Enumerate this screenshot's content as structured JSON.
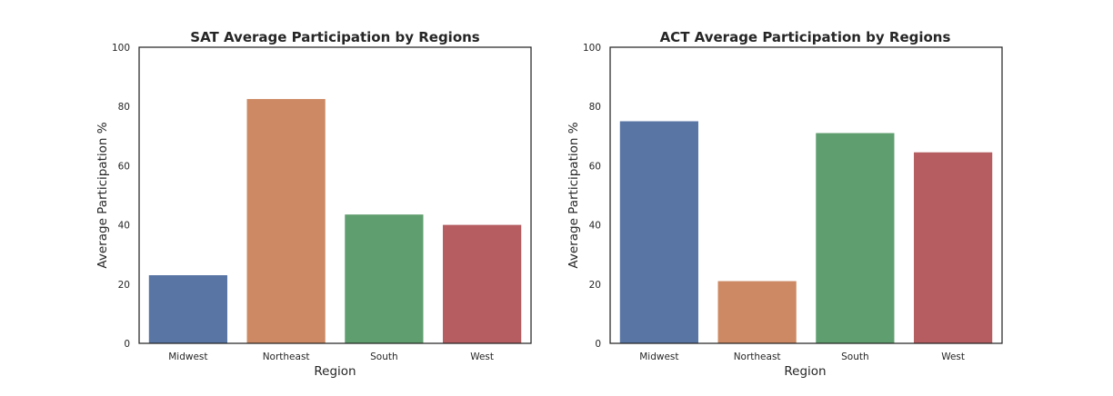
{
  "chart_data": [
    {
      "type": "bar",
      "title": "SAT Average Participation by Regions",
      "xlabel": "Region",
      "ylabel": "Average Participation %",
      "categories": [
        "Midwest",
        "Northeast",
        "South",
        "West"
      ],
      "values": [
        23,
        82.5,
        43.5,
        40
      ],
      "ylim": [
        0,
        100
      ],
      "yticks": [
        0,
        20,
        40,
        60,
        80,
        100
      ],
      "grid": false,
      "colors": [
        "#5875a4",
        "#cc8963",
        "#5f9e6e",
        "#b55d60"
      ]
    },
    {
      "type": "bar",
      "title": "ACT Average Participation by Regions",
      "xlabel": "Region",
      "ylabel": "Average Participation %",
      "categories": [
        "Midwest",
        "Northeast",
        "South",
        "West"
      ],
      "values": [
        75,
        21,
        71,
        64.5
      ],
      "ylim": [
        0,
        100
      ],
      "yticks": [
        0,
        20,
        40,
        60,
        80,
        100
      ],
      "grid": false,
      "colors": [
        "#5875a4",
        "#cc8963",
        "#5f9e6e",
        "#b55d60"
      ]
    }
  ]
}
